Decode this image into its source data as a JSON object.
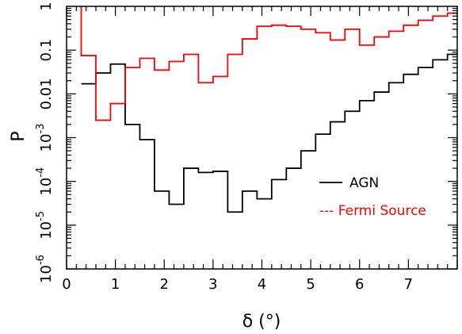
{
  "chart_data": {
    "type": "line",
    "drawstyle": "steps",
    "xlabel": "δ (°)",
    "ylabel": "P",
    "xlim": [
      0,
      8
    ],
    "ylim": [
      1e-06,
      1
    ],
    "yscale": "log",
    "bin_width": 0.3,
    "x_ticks": [
      "0",
      "1",
      "2",
      "3",
      "4",
      "5",
      "6",
      "7"
    ],
    "y_ticks": [
      "1",
      "0.1",
      "0.01",
      "10^-3",
      "10^-4",
      "10^-5",
      "10^-6"
    ],
    "legend_position": "center-right",
    "series": [
      {
        "name": "AGN",
        "legend_label": "AGN",
        "color": "#000000",
        "bin_starts": [
          0.3,
          0.6,
          0.9,
          1.2,
          1.5,
          1.8,
          2.1,
          2.4,
          2.7,
          3.0,
          3.3,
          3.6,
          3.9,
          4.2,
          4.5,
          4.8,
          5.1,
          5.4,
          5.7,
          6.0,
          6.3,
          6.6,
          6.9,
          7.2,
          7.5,
          7.8
        ],
        "values": [
          0.017,
          0.03,
          0.048,
          0.002,
          0.0009,
          6e-05,
          3e-05,
          0.0002,
          0.00016,
          0.00017,
          2e-05,
          6e-05,
          4e-05,
          0.00011,
          0.0002,
          0.0005,
          0.0012,
          0.0023,
          0.004,
          0.007,
          0.011,
          0.018,
          0.028,
          0.04,
          0.06,
          0.08
        ]
      },
      {
        "name": "Fermi Source",
        "legend_label": "--- Fermi Source",
        "color": "#ff0000",
        "spike_x": 0.3,
        "bin_starts": [
          0.3,
          0.6,
          0.9,
          1.2,
          1.5,
          1.8,
          2.1,
          2.4,
          2.7,
          3.0,
          3.3,
          3.6,
          3.9,
          4.2,
          4.5,
          4.8,
          5.1,
          5.4,
          5.7,
          6.0,
          6.3,
          6.6,
          6.9,
          7.2,
          7.5,
          7.8
        ],
        "values": [
          0.075,
          0.0025,
          0.006,
          0.04,
          0.065,
          0.035,
          0.055,
          0.08,
          0.018,
          0.025,
          0.08,
          0.18,
          0.35,
          0.37,
          0.35,
          0.3,
          0.25,
          0.17,
          0.3,
          0.13,
          0.2,
          0.27,
          0.37,
          0.48,
          0.6,
          0.7
        ]
      }
    ]
  }
}
